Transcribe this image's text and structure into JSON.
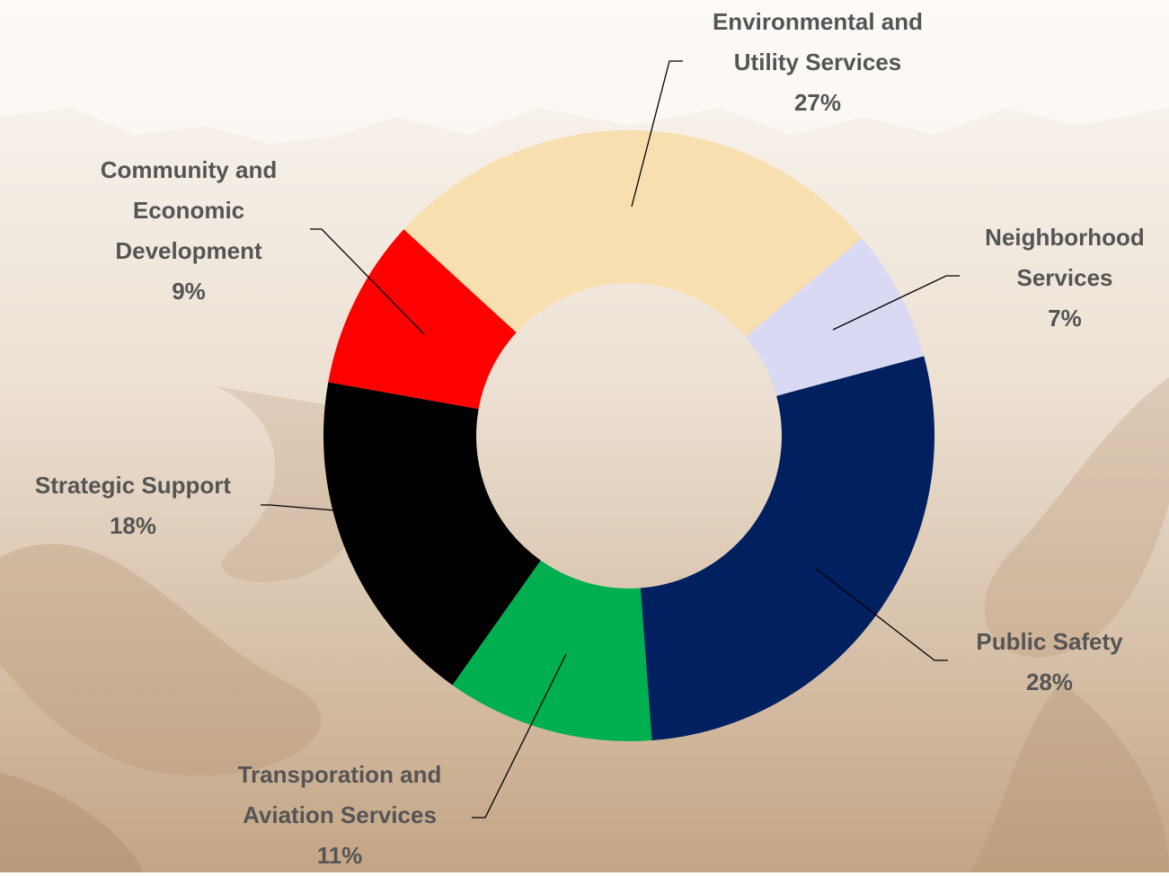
{
  "chart_data": {
    "type": "donut",
    "categories": [
      "Environmental and Utility Services",
      "Neighborhood Services",
      "Public Safety",
      "Transporation and Aviation Services",
      "Strategic Support",
      "Community and Economic Development"
    ],
    "values": [
      27,
      7,
      28,
      11,
      18,
      9
    ],
    "value_labels": [
      "27%",
      "7%",
      "28%",
      "11%",
      "18%",
      "9%"
    ],
    "colors": [
      "#F8DFB0",
      "#D9D9F3",
      "#002060",
      "#00B050",
      "#000000",
      "#FF0000"
    ]
  }
}
